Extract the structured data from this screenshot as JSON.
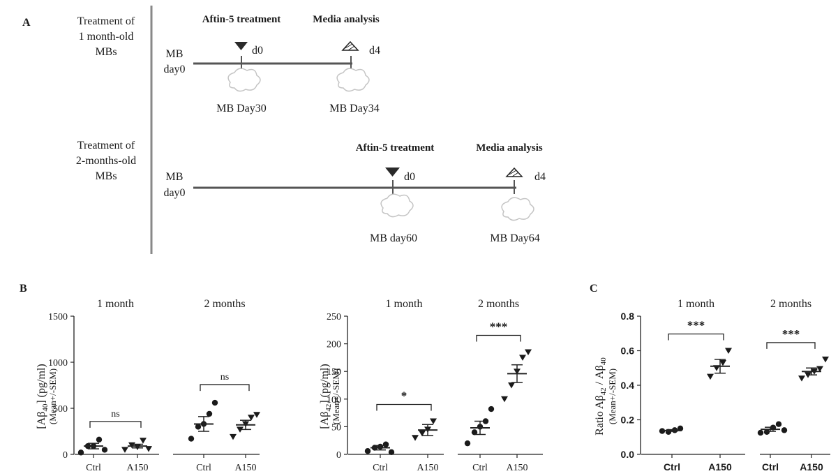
{
  "panel_a": {
    "label": "A",
    "rows": [
      {
        "title_lines": [
          "Treatment of",
          "1 month-old",
          "MBs"
        ],
        "start_lines": [
          "MB",
          "day0"
        ],
        "treatment_label": "Aftin-5 treatment",
        "treatment_day": "d0",
        "analysis_label": "Media analysis",
        "analysis_day": "d4",
        "treatment_mb": "MB Day30",
        "analysis_mb": "MB Day34"
      },
      {
        "title_lines": [
          "Treatment of",
          "2-months-old",
          "MBs"
        ],
        "start_lines": [
          "MB",
          "day0"
        ],
        "treatment_label": "Aftin-5 treatment",
        "treatment_day": "d0",
        "analysis_label": "Media analysis",
        "analysis_day": "d4",
        "treatment_mb": "MB day60",
        "analysis_mb": "MB Day64"
      }
    ]
  },
  "panel_b_label": "B",
  "panel_c_label": "C",
  "ylabels": {
    "ab40": {
      "main_pre": "[Aβ",
      "main_sub": "40",
      "main_post": "] (pg/ml)",
      "second": "(Mean+/-SEM)"
    },
    "ab42": {
      "main_pre": "[Aβ",
      "main_sub": "42",
      "main_post": "] (pg/ml)",
      "second": "(Mean+/-SEM)"
    },
    "ratio": {
      "main_pre": "Ratio Aβ",
      "main_sub": "42",
      "main_mid": " / Aβ",
      "main_sub2": "40",
      "second": "(Mean+/-SEM)"
    }
  },
  "colors": {
    "ink": "#1a1a1a",
    "axis": "#222222",
    "timeline": "#555555"
  },
  "chart_data": [
    {
      "type": "scatter",
      "panel": "B",
      "ylim": [
        0,
        1500
      ],
      "yticks": [
        "0",
        "500",
        "1000",
        "1500"
      ],
      "groups": [
        {
          "title": "1 month",
          "categories": [
            "Ctrl",
            "A150"
          ],
          "significance": "ns",
          "points": [
            [
              20,
              90,
              90,
              160,
              50
            ],
            [
              50,
              100,
              80,
              150,
              60
            ]
          ],
          "mean": [
            90,
            90
          ],
          "sem": [
            30,
            20
          ]
        },
        {
          "title": "2 months",
          "categories": [
            "Ctrl",
            "A150"
          ],
          "significance": "ns",
          "points": [
            [
              170,
              300,
              330,
              440,
              560
            ],
            [
              190,
              270,
              330,
              400,
              430
            ]
          ],
          "mean": [
            330,
            320
          ],
          "sem": [
            80,
            50
          ]
        }
      ]
    },
    {
      "type": "scatter",
      "panel": "B",
      "ylim": [
        0,
        250
      ],
      "yticks": [
        "0",
        "50",
        "100",
        "150",
        "200",
        "250"
      ],
      "groups": [
        {
          "title": "1 month",
          "categories": [
            "Ctrl",
            "A150"
          ],
          "significance": "*",
          "points": [
            [
              6,
              12,
              14,
              18,
              4
            ],
            [
              30,
              38,
              45,
              60
            ]
          ],
          "mean": [
            12,
            44
          ],
          "sem": [
            4,
            10
          ]
        },
        {
          "title": "2 months",
          "categories": [
            "Ctrl",
            "A150"
          ],
          "significance": "***",
          "points": [
            [
              20,
              40,
              50,
              60,
              82
            ],
            [
              100,
              125,
              150,
              175,
              185
            ]
          ],
          "mean": [
            48,
            146
          ],
          "sem": [
            12,
            16
          ]
        }
      ]
    },
    {
      "type": "scatter",
      "panel": "C",
      "ylim": [
        0.0,
        0.8
      ],
      "yticks": [
        "0.0",
        "0.2",
        "0.4",
        "0.6",
        "0.8"
      ],
      "groups": [
        {
          "title": "1 month",
          "categories": [
            "Ctrl",
            "A150"
          ],
          "significance": "***",
          "points": [
            [
              0.135,
              0.13,
              0.14,
              0.15
            ],
            [
              0.45,
              0.5,
              0.53,
              0.6
            ]
          ],
          "mean": [
            0.138,
            0.51
          ],
          "sem": [
            0.005,
            0.04
          ]
        },
        {
          "title": "2 months",
          "categories": [
            "Ctrl",
            "A150"
          ],
          "significance": "***",
          "points": [
            [
              0.125,
              0.13,
              0.155,
              0.175,
              0.14
            ],
            [
              0.44,
              0.46,
              0.48,
              0.495,
              0.55
            ]
          ],
          "mean": [
            0.145,
            0.48
          ],
          "sem": [
            0.012,
            0.02
          ]
        }
      ]
    }
  ]
}
